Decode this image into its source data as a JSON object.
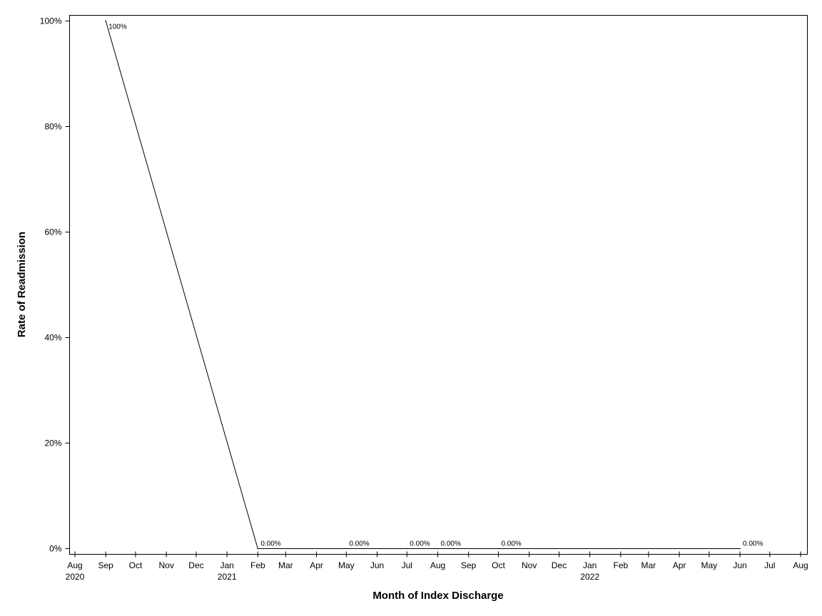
{
  "chart_data": {
    "type": "line",
    "xlabel": "Month of Index Discharge",
    "ylabel": "Rate of Readmission",
    "xlim": [
      "2020-08",
      "2022-08"
    ],
    "ylim": [
      0,
      100
    ],
    "y_ticks": [
      {
        "value": 0,
        "label": "0%"
      },
      {
        "value": 20,
        "label": "20%"
      },
      {
        "value": 40,
        "label": "40%"
      },
      {
        "value": 60,
        "label": "60%"
      },
      {
        "value": 80,
        "label": "80%"
      },
      {
        "value": 100,
        "label": "100%"
      }
    ],
    "x_ticks": [
      {
        "date": "2020-08",
        "label": "Aug",
        "year": "2020"
      },
      {
        "date": "2020-09",
        "label": "Sep"
      },
      {
        "date": "2020-10",
        "label": "Oct"
      },
      {
        "date": "2020-11",
        "label": "Nov"
      },
      {
        "date": "2020-12",
        "label": "Dec"
      },
      {
        "date": "2021-01",
        "label": "Jan",
        "year": "2021"
      },
      {
        "date": "2021-02",
        "label": "Feb"
      },
      {
        "date": "2021-03",
        "label": "Mar"
      },
      {
        "date": "2021-04",
        "label": "Apr"
      },
      {
        "date": "2021-05",
        "label": "May"
      },
      {
        "date": "2021-06",
        "label": "Jun"
      },
      {
        "date": "2021-07",
        "label": "Jul"
      },
      {
        "date": "2021-08",
        "label": "Aug"
      },
      {
        "date": "2021-09",
        "label": "Sep"
      },
      {
        "date": "2021-10",
        "label": "Oct"
      },
      {
        "date": "2021-11",
        "label": "Nov"
      },
      {
        "date": "2021-12",
        "label": "Dec"
      },
      {
        "date": "2022-01",
        "label": "Jan",
        "year": "2022"
      },
      {
        "date": "2022-02",
        "label": "Feb"
      },
      {
        "date": "2022-03",
        "label": "Mar"
      },
      {
        "date": "2022-04",
        "label": "Apr"
      },
      {
        "date": "2022-05",
        "label": "May"
      },
      {
        "date": "2022-06",
        "label": "Jun"
      },
      {
        "date": "2022-07",
        "label": "Jul"
      },
      {
        "date": "2022-08",
        "label": "Aug"
      }
    ],
    "points": [
      {
        "x": "2020-09-01",
        "y": 100,
        "label": "100%"
      },
      {
        "x": "2021-02-01",
        "y": 0,
        "label": "0.00%"
      },
      {
        "x": "2021-05-01",
        "y": 0,
        "label": "0.00%"
      },
      {
        "x": "2021-07-01",
        "y": 0,
        "label": "0.00%"
      },
      {
        "x": "2021-08-01",
        "y": 0,
        "label": "0.00%"
      },
      {
        "x": "2021-10-01",
        "y": 0,
        "label": "0.00%"
      },
      {
        "x": "2022-06-01",
        "y": 0,
        "label": "0.00%"
      }
    ],
    "line_color": "#000000",
    "grid": false,
    "legend": "none"
  }
}
